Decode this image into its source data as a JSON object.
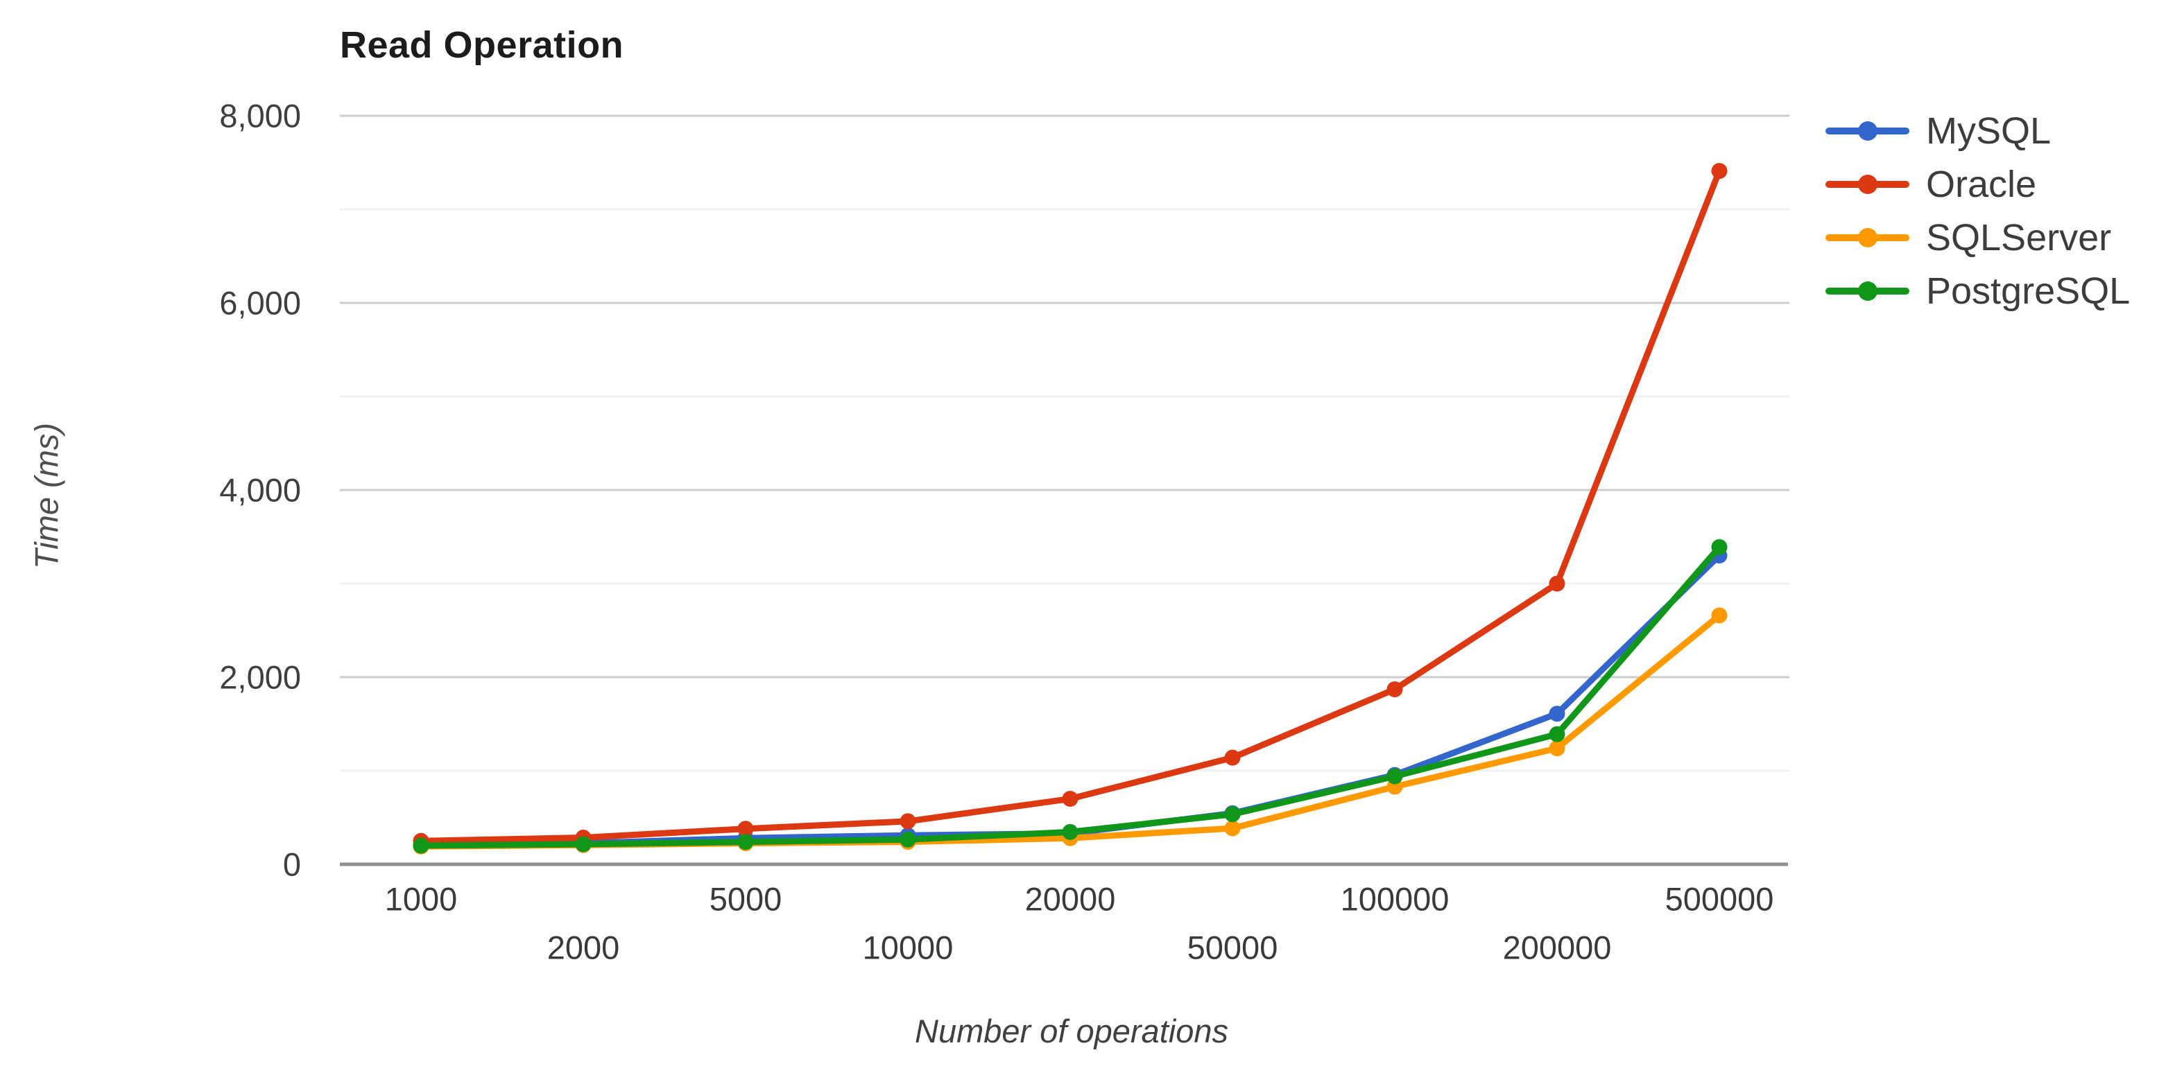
{
  "chart_data": {
    "type": "line",
    "title": "Read Operation",
    "xlabel": "Number of operations",
    "ylabel": "Time (ms)",
    "categories": [
      "1000",
      "2000",
      "5000",
      "10000",
      "20000",
      "50000",
      "100000",
      "200000",
      "500000"
    ],
    "series": [
      {
        "name": "MySQL",
        "color": "#3366CC",
        "values": [
          205,
          225,
          280,
          310,
          330,
          545,
          955,
          1610,
          3300
        ]
      },
      {
        "name": "Oracle",
        "color": "#DC3912",
        "values": [
          250,
          285,
          380,
          460,
          700,
          1140,
          1870,
          3000,
          7410
        ]
      },
      {
        "name": "SQLServer",
        "color": "#FF9900",
        "values": [
          190,
          205,
          225,
          240,
          280,
          385,
          830,
          1240,
          2660
        ]
      },
      {
        "name": "PostgreSQL",
        "color": "#109618",
        "values": [
          200,
          215,
          240,
          265,
          345,
          535,
          940,
          1390,
          3390
        ]
      }
    ],
    "ylim": [
      0,
      8000
    ],
    "y_tick_step": 2000,
    "y_tick_labels": [
      "0",
      "2,000",
      "4,000",
      "6,000",
      "8,000"
    ],
    "minor_gridline_step": 1000,
    "grid": true,
    "legend_position": "right",
    "x_axis_stagger": true
  },
  "style_colors": {
    "major_gridline": "#cccccc",
    "minor_gridline": "#f1f1f1",
    "axis_line": "#8f8f8f"
  }
}
